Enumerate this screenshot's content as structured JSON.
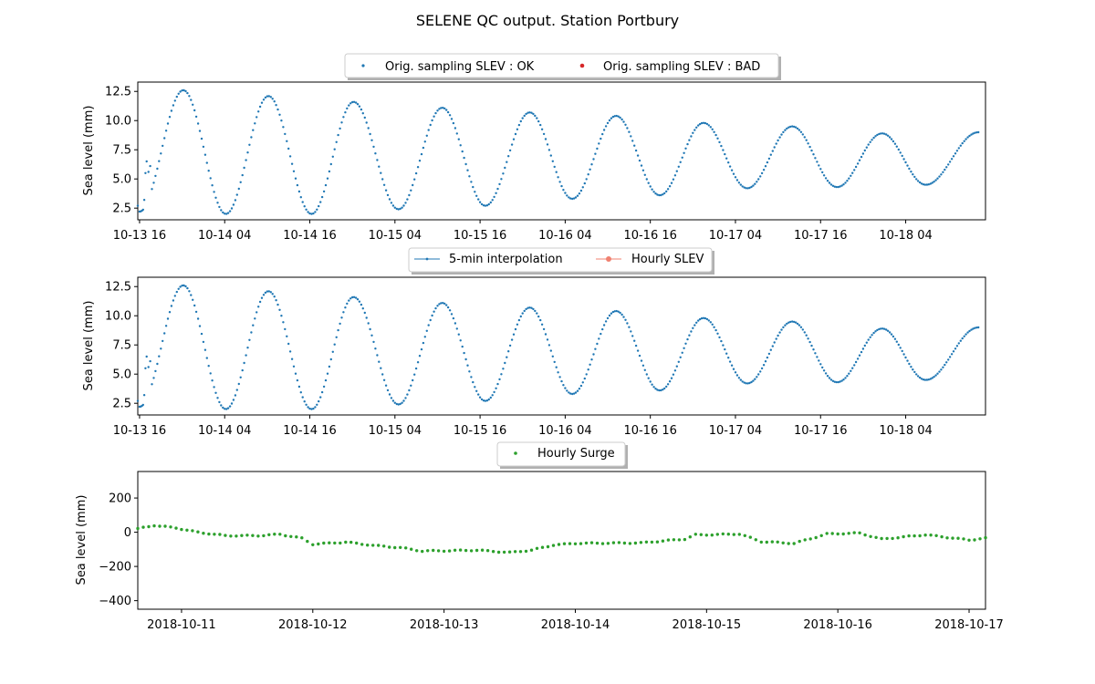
{
  "title": "SELENE QC output. Station Portbury",
  "chart_data": [
    {
      "type": "scatter",
      "ylabel": "Sea level (mm)",
      "ylim": [
        1.5,
        13.3
      ],
      "yticks": [
        "2.5",
        "5.0",
        "7.5",
        "10.0",
        "12.5"
      ],
      "ytick_values": [
        2.5,
        5.0,
        7.5,
        10.0,
        12.5
      ],
      "xlim": [
        "2018-10-13 15:45",
        "2018-10-18 15:15"
      ],
      "xticks": [
        "10-13 16",
        "10-14 04",
        "10-14 16",
        "10-15 04",
        "10-15 16",
        "10-16 04",
        "10-16 16",
        "10-17 04",
        "10-17 16",
        "10-18 04"
      ],
      "xtick_values": [
        "2018-10-13 16:00",
        "2018-10-14 04:00",
        "2018-10-14 16:00",
        "2018-10-15 04:00",
        "2018-10-15 16:00",
        "2018-10-16 04:00",
        "2018-10-16 16:00",
        "2018-10-17 04:00",
        "2018-10-17 16:00",
        "2018-10-18 04:00"
      ],
      "legend_position": "top-center",
      "series": [
        {
          "name": "Orig. sampling SLEV : OK",
          "color": "#1f77b4",
          "marker": "dot",
          "tide_extrema": [
            {
              "t": "2018-10-13 16:00",
              "v": 2.2
            },
            {
              "t": "2018-10-13 22:10",
              "v": 12.6
            },
            {
              "t": "2018-10-14 04:10",
              "v": 2.0
            },
            {
              "t": "2018-10-14 10:10",
              "v": 12.1
            },
            {
              "t": "2018-10-14 16:15",
              "v": 2.0
            },
            {
              "t": "2018-10-14 22:10",
              "v": 11.6
            },
            {
              "t": "2018-10-15 04:30",
              "v": 2.4
            },
            {
              "t": "2018-10-15 10:40",
              "v": 11.1
            },
            {
              "t": "2018-10-15 16:45",
              "v": 2.7
            },
            {
              "t": "2018-10-15 23:00",
              "v": 10.7
            },
            {
              "t": "2018-10-16 05:00",
              "v": 3.3
            },
            {
              "t": "2018-10-16 11:10",
              "v": 10.4
            },
            {
              "t": "2018-10-16 17:20",
              "v": 3.6
            },
            {
              "t": "2018-10-16 23:30",
              "v": 9.8
            },
            {
              "t": "2018-10-17 05:40",
              "v": 4.2
            },
            {
              "t": "2018-10-17 12:00",
              "v": 9.5
            },
            {
              "t": "2018-10-17 18:20",
              "v": 4.3
            },
            {
              "t": "2018-10-18 00:40",
              "v": 8.9
            },
            {
              "t": "2018-10-18 06:50",
              "v": 4.5
            },
            {
              "t": "2018-10-18 14:15",
              "v": 9.0
            }
          ],
          "irregular_points": [
            {
              "t": "2018-10-13 15:45",
              "v": 2.7
            },
            {
              "t": "2018-10-13 16:40",
              "v": 3.2
            },
            {
              "t": "2018-10-13 16:50",
              "v": 5.5
            },
            {
              "t": "2018-10-13 17:00",
              "v": 6.5
            },
            {
              "t": "2018-10-13 17:15",
              "v": 5.6
            },
            {
              "t": "2018-10-13 17:30",
              "v": 6.1
            }
          ]
        },
        {
          "name": "Orig. sampling SLEV : BAD",
          "color": "#d62728",
          "marker": "dot",
          "points": []
        }
      ]
    },
    {
      "type": "line",
      "ylabel": "Sea level (mm)",
      "ylim": [
        1.5,
        13.3
      ],
      "yticks": [
        "2.5",
        "5.0",
        "7.5",
        "10.0",
        "12.5"
      ],
      "ytick_values": [
        2.5,
        5.0,
        7.5,
        10.0,
        12.5
      ],
      "xticks": [
        "10-13 16",
        "10-14 04",
        "10-14 16",
        "10-15 04",
        "10-15 16",
        "10-16 04",
        "10-16 16",
        "10-17 04",
        "10-17 16",
        "10-18 04"
      ],
      "legend_position": "top-center",
      "series": [
        {
          "name": "5-min interpolation",
          "color": "#1f77b4",
          "marker": "dot-line",
          "same_as": "Orig. sampling SLEV : OK"
        },
        {
          "name": "Hourly SLEV",
          "color": "#f08070",
          "marker": "circle-line",
          "points": []
        }
      ]
    },
    {
      "type": "scatter",
      "ylabel": "Sea level (mm)",
      "ylim": [
        -450,
        355
      ],
      "yticks": [
        "−400",
        "−200",
        "0",
        "200"
      ],
      "ytick_values": [
        -400,
        -200,
        0,
        200
      ],
      "xlim": [
        "2018-10-10 16:00",
        "2018-10-17 03:00"
      ],
      "xticks": [
        "2018-10-11",
        "2018-10-12",
        "2018-10-13",
        "2018-10-14",
        "2018-10-15",
        "2018-10-16",
        "2018-10-17"
      ],
      "xtick_values": [
        "2018-10-11 00:00",
        "2018-10-12 00:00",
        "2018-10-13 00:00",
        "2018-10-14 00:00",
        "2018-10-15 00:00",
        "2018-10-16 00:00",
        "2018-10-17 00:00"
      ],
      "legend_position": "top-center",
      "series": [
        {
          "name": "Hourly Surge",
          "color": "#2ca02c",
          "marker": "dot",
          "hourly_from": "2018-10-10 16:00",
          "hourly_to": "2018-10-17 03:00",
          "profile": [
            {
              "t": "2018-10-10 16:00",
              "v": 20
            },
            {
              "t": "2018-10-10 19:00",
              "v": 40
            },
            {
              "t": "2018-10-10 23:00",
              "v": 25
            },
            {
              "t": "2018-10-11 03:00",
              "v": 0
            },
            {
              "t": "2018-10-11 08:00",
              "v": -20
            },
            {
              "t": "2018-10-11 14:00",
              "v": -20
            },
            {
              "t": "2018-10-11 18:00",
              "v": -12
            },
            {
              "t": "2018-10-11 22:00",
              "v": -35
            },
            {
              "t": "2018-10-12 00:00",
              "v": -70
            },
            {
              "t": "2018-10-12 06:00",
              "v": -58
            },
            {
              "t": "2018-10-12 12:00",
              "v": -80
            },
            {
              "t": "2018-10-12 16:00",
              "v": -90
            },
            {
              "t": "2018-10-12 20:00",
              "v": -110
            },
            {
              "t": "2018-10-13 06:00",
              "v": -105
            },
            {
              "t": "2018-10-13 12:00",
              "v": -118
            },
            {
              "t": "2018-10-13 16:00",
              "v": -105
            },
            {
              "t": "2018-10-13 20:00",
              "v": -75
            },
            {
              "t": "2018-10-14 00:00",
              "v": -65
            },
            {
              "t": "2018-10-14 12:00",
              "v": -62
            },
            {
              "t": "2018-10-14 20:00",
              "v": -40
            },
            {
              "t": "2018-10-14 22:00",
              "v": -15
            },
            {
              "t": "2018-10-15 00:00",
              "v": -15
            },
            {
              "t": "2018-10-15 06:00",
              "v": -10
            },
            {
              "t": "2018-10-15 10:00",
              "v": -55
            },
            {
              "t": "2018-10-15 16:00",
              "v": -65
            },
            {
              "t": "2018-10-15 22:00",
              "v": -10
            },
            {
              "t": "2018-10-16 04:00",
              "v": -5
            },
            {
              "t": "2018-10-16 08:00",
              "v": -40
            },
            {
              "t": "2018-10-16 16:00",
              "v": -15
            },
            {
              "t": "2018-10-17 00:00",
              "v": -45
            },
            {
              "t": "2018-10-17 03:00",
              "v": -35
            }
          ]
        }
      ]
    }
  ]
}
